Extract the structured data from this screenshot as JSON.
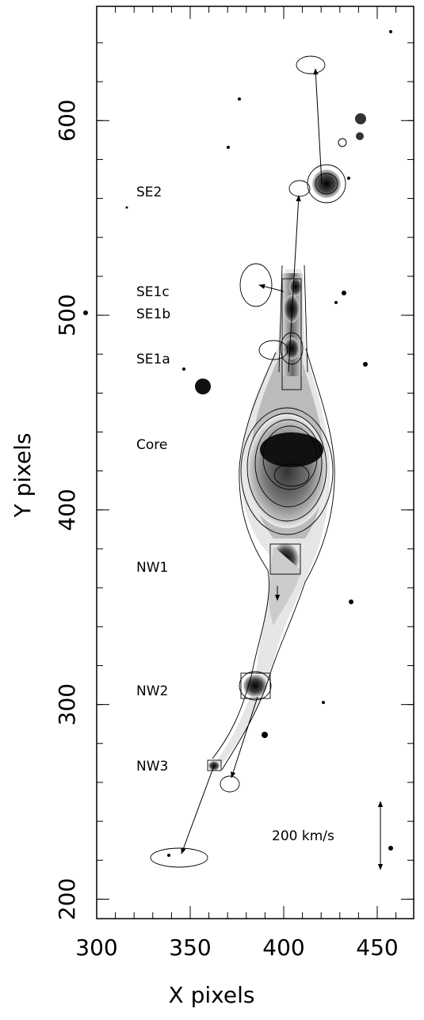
{
  "chart_data": {
    "type": "image",
    "xlabel": "X pixels",
    "ylabel": "Y pixels",
    "xlim": [
      300,
      469.5
    ],
    "ylim": [
      190,
      658.7
    ],
    "xticks": [
      300,
      350,
      400,
      450
    ],
    "yticks": [
      200,
      300,
      400,
      500,
      600
    ],
    "annotations": [
      "SE2",
      "SE1c",
      "SE1b",
      "SE1a",
      "Core",
      "NW1",
      "NW2",
      "NW3",
      "200 km/s"
    ]
  }
}
